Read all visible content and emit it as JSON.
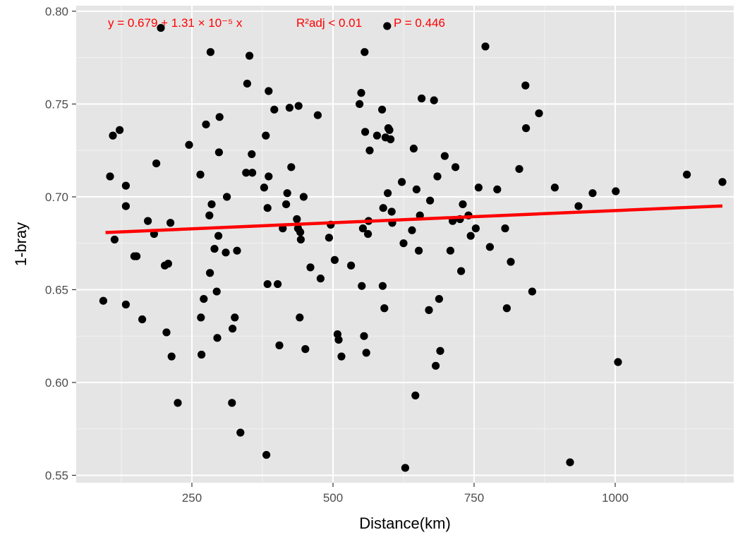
{
  "chart_data": {
    "type": "scatter",
    "xlabel": "Distance(km)",
    "ylabel": "1-bray",
    "xlim": [
      45,
      1210
    ],
    "ylim": [
      0.546,
      0.803
    ],
    "x_ticks": [
      250,
      500,
      750,
      1000
    ],
    "x_tick_labels": [
      "250",
      "500",
      "750",
      "1000"
    ],
    "y_ticks": [
      0.55,
      0.6,
      0.65,
      0.7,
      0.75,
      0.8
    ],
    "y_tick_labels": [
      "0.55",
      "0.60",
      "0.65",
      "0.70",
      "0.75",
      "0.80"
    ],
    "grid": true,
    "annotation": {
      "equation": "y = 0.679 + 1.31 × 10⁻⁵ x",
      "r2": "R²adj < 0.01",
      "p_value": "P = 0.446",
      "color": "#ff0000"
    },
    "fit_line": {
      "intercept": 0.6795,
      "slope": 1.31e-05,
      "x_range": [
        97,
        1190
      ],
      "color": "#ff0000"
    },
    "points": [
      [
        93,
        0.644
      ],
      [
        105,
        0.711
      ],
      [
        110,
        0.733
      ],
      [
        113,
        0.677
      ],
      [
        122,
        0.736
      ],
      [
        133,
        0.706
      ],
      [
        133,
        0.695
      ],
      [
        133,
        0.642
      ],
      [
        148,
        0.668
      ],
      [
        152,
        0.668
      ],
      [
        162,
        0.634
      ],
      [
        172,
        0.687
      ],
      [
        183,
        0.68
      ],
      [
        187,
        0.718
      ],
      [
        195,
        0.791
      ],
      [
        202,
        0.663
      ],
      [
        205,
        0.627
      ],
      [
        208,
        0.664
      ],
      [
        212,
        0.686
      ],
      [
        214,
        0.614
      ],
      [
        225,
        0.589
      ],
      [
        245,
        0.728
      ],
      [
        265,
        0.712
      ],
      [
        266,
        0.635
      ],
      [
        267,
        0.615
      ],
      [
        271,
        0.645
      ],
      [
        275,
        0.739
      ],
      [
        281,
        0.69
      ],
      [
        282,
        0.659
      ],
      [
        283,
        0.778
      ],
      [
        285,
        0.696
      ],
      [
        290,
        0.672
      ],
      [
        294,
        0.649
      ],
      [
        295,
        0.624
      ],
      [
        297,
        0.679
      ],
      [
        298,
        0.724
      ],
      [
        299,
        0.743
      ],
      [
        310,
        0.67
      ],
      [
        312,
        0.7
      ],
      [
        321,
        0.589
      ],
      [
        322,
        0.629
      ],
      [
        326,
        0.635
      ],
      [
        330,
        0.671
      ],
      [
        336,
        0.573
      ],
      [
        346,
        0.713
      ],
      [
        348,
        0.761
      ],
      [
        352,
        0.776
      ],
      [
        356,
        0.723
      ],
      [
        357,
        0.713
      ],
      [
        378,
        0.705
      ],
      [
        381,
        0.733
      ],
      [
        382,
        0.561
      ],
      [
        384,
        0.653
      ],
      [
        384,
        0.694
      ],
      [
        386,
        0.757
      ],
      [
        386,
        0.711
      ],
      [
        396,
        0.747
      ],
      [
        402,
        0.653
      ],
      [
        405,
        0.62
      ],
      [
        411,
        0.683
      ],
      [
        417,
        0.696
      ],
      [
        419,
        0.702
      ],
      [
        423,
        0.748
      ],
      [
        426,
        0.716
      ],
      [
        436,
        0.688
      ],
      [
        438,
        0.683
      ],
      [
        439,
        0.749
      ],
      [
        441,
        0.635
      ],
      [
        442,
        0.681
      ],
      [
        443,
        0.677
      ],
      [
        448,
        0.7
      ],
      [
        451,
        0.618
      ],
      [
        460,
        0.662
      ],
      [
        473,
        0.744
      ],
      [
        478,
        0.656
      ],
      [
        493,
        0.678
      ],
      [
        496,
        0.685
      ],
      [
        503,
        0.666
      ],
      [
        508,
        0.626
      ],
      [
        510,
        0.623
      ],
      [
        515,
        0.614
      ],
      [
        532,
        0.663
      ],
      [
        547,
        0.75
      ],
      [
        550,
        0.756
      ],
      [
        551,
        0.652
      ],
      [
        553,
        0.683
      ],
      [
        555,
        0.625
      ],
      [
        556,
        0.778
      ],
      [
        557,
        0.735
      ],
      [
        559,
        0.616
      ],
      [
        562,
        0.68
      ],
      [
        563,
        0.687
      ],
      [
        565,
        0.725
      ],
      [
        578,
        0.733
      ],
      [
        587,
        0.747
      ],
      [
        588,
        0.652
      ],
      [
        589,
        0.694
      ],
      [
        591,
        0.64
      ],
      [
        593,
        0.732
      ],
      [
        596,
        0.792
      ],
      [
        597,
        0.702
      ],
      [
        598,
        0.737
      ],
      [
        600,
        0.736
      ],
      [
        602,
        0.731
      ],
      [
        604,
        0.692
      ],
      [
        605,
        0.686
      ],
      [
        622,
        0.708
      ],
      [
        625,
        0.675
      ],
      [
        628,
        0.554
      ],
      [
        640,
        0.682
      ],
      [
        643,
        0.726
      ],
      [
        646,
        0.593
      ],
      [
        648,
        0.704
      ],
      [
        652,
        0.671
      ],
      [
        654,
        0.69
      ],
      [
        657,
        0.753
      ],
      [
        670,
        0.639
      ],
      [
        672,
        0.698
      ],
      [
        679,
        0.752
      ],
      [
        682,
        0.609
      ],
      [
        685,
        0.711
      ],
      [
        688,
        0.645
      ],
      [
        690,
        0.617
      ],
      [
        698,
        0.722
      ],
      [
        708,
        0.671
      ],
      [
        712,
        0.687
      ],
      [
        717,
        0.716
      ],
      [
        725,
        0.688
      ],
      [
        727,
        0.66
      ],
      [
        730,
        0.696
      ],
      [
        740,
        0.69
      ],
      [
        744,
        0.679
      ],
      [
        753,
        0.683
      ],
      [
        758,
        0.705
      ],
      [
        770,
        0.781
      ],
      [
        778,
        0.673
      ],
      [
        791,
        0.704
      ],
      [
        805,
        0.683
      ],
      [
        808,
        0.64
      ],
      [
        815,
        0.665
      ],
      [
        830,
        0.715
      ],
      [
        841,
        0.76
      ],
      [
        842,
        0.737
      ],
      [
        853,
        0.649
      ],
      [
        865,
        0.745
      ],
      [
        893,
        0.705
      ],
      [
        920,
        0.557
      ],
      [
        935,
        0.695
      ],
      [
        960,
        0.702
      ],
      [
        1001,
        0.703
      ],
      [
        1005,
        0.611
      ],
      [
        1127,
        0.712
      ],
      [
        1190,
        0.708
      ]
    ]
  }
}
